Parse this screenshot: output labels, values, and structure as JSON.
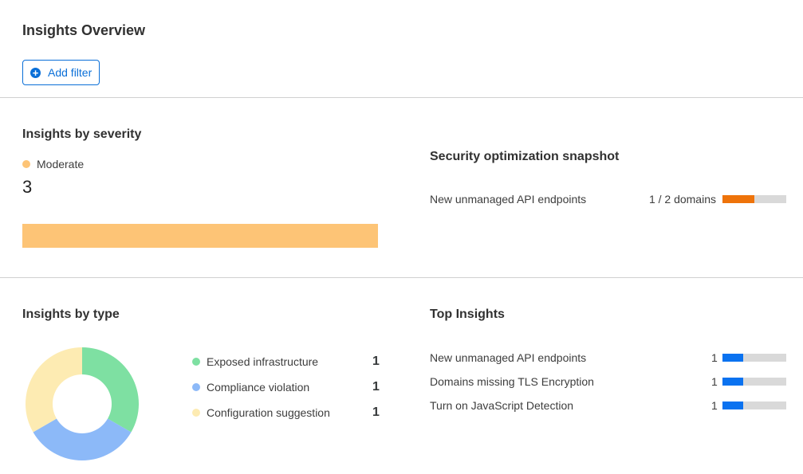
{
  "title": "Insights Overview",
  "add_filter": "Add filter",
  "severity": {
    "title": "Insights by severity",
    "legend": "Moderate",
    "count": "3",
    "color": "#fdc476"
  },
  "snapshot": {
    "title": "Security optimization snapshot",
    "items": [
      {
        "label": "New unmanaged API endpoints",
        "value": "1 / 2 domains",
        "fraction": 0.5,
        "color": "#ee730a"
      }
    ]
  },
  "type": {
    "title": "Insights by type",
    "items": [
      {
        "label": "Exposed infrastructure",
        "count": "1",
        "value": 1,
        "color": "#7ee0a2"
      },
      {
        "label": "Compliance violation",
        "count": "1",
        "value": 1,
        "color": "#8cb9f8"
      },
      {
        "label": "Configuration suggestion",
        "count": "1",
        "value": 1,
        "color": "#fdebb2"
      }
    ]
  },
  "top": {
    "title": "Top Insights",
    "color": "#0a72f0",
    "items": [
      {
        "label": "New unmanaged API endpoints",
        "count": "1",
        "fraction": 0.33
      },
      {
        "label": "Domains missing TLS Encryption",
        "count": "1",
        "fraction": 0.33
      },
      {
        "label": "Turn on JavaScript Detection",
        "count": "1",
        "fraction": 0.33
      }
    ]
  }
}
